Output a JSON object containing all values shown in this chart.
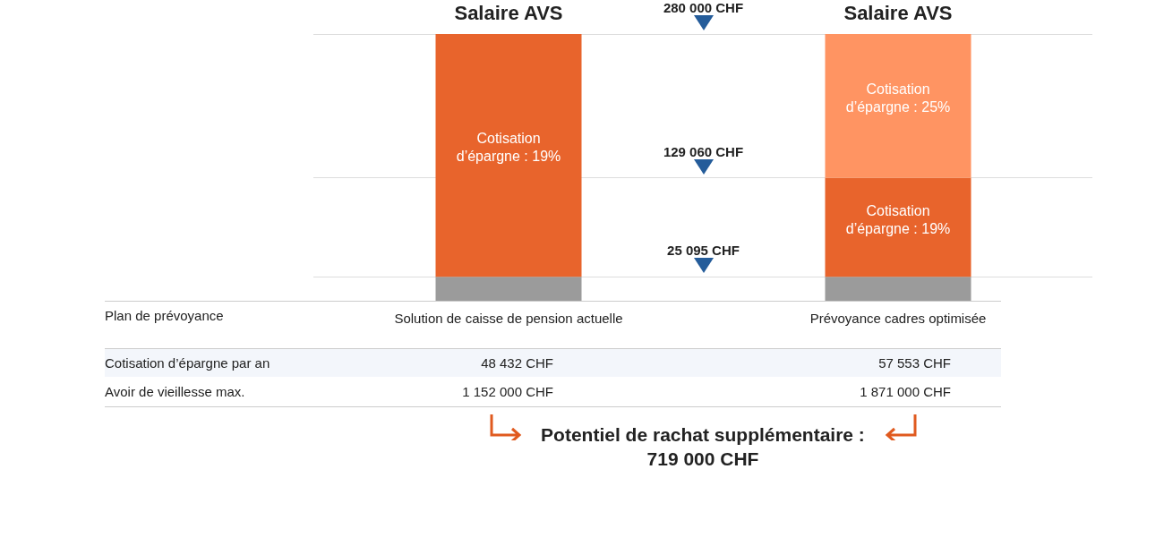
{
  "chart_data": {
    "type": "bar",
    "stacked": true,
    "tick_labels": "x",
    "categories": [
      "Solution de caisse de pension actuelle",
      "Prévoyance cadres optimisée"
    ],
    "ylim": [
      0,
      280000
    ],
    "series": [
      {
        "color": "#9b9b9b",
        "values": [
          25095,
          25095
        ]
      },
      {
        "color": "#e8642c",
        "values": [
          254905,
          103965
        ]
      },
      {
        "color": "#ff9462",
        "values": [
          null,
          150940
        ]
      }
    ],
    "ref_lines": [
      {
        "axis": "y",
        "value": 280000,
        "label": "280 000 CHF",
        "color": "#bbbbbb",
        "line_style": "dotted"
      },
      {
        "axis": "y",
        "value": 129060,
        "label": "129 060 CHF",
        "color": "#bbbbbb",
        "line_style": "dotted"
      },
      {
        "axis": "y",
        "value": 25095,
        "label": "25 095 CHF",
        "color": "#bbbbbb",
        "line_style": "dotted"
      }
    ],
    "annotations": [
      {
        "text": "Salaire AVS",
        "x": "Solution de caisse de pension actuelle",
        "y": 280000
      },
      {
        "text": "Salaire AVS",
        "x": "Prévoyance cadres optimisée",
        "y": 280000
      },
      "Cotisation d’épargne : 19%",
      "Cotisation d’épargne : 25%",
      "Cotisation d’épargne : 19%",
      "Plan de prévoyance",
      "Cotisation d’épargne par an",
      "48 432 CHF",
      "57 553 CHF",
      "Avoir de vieillesse max.",
      "1 152 000 CHF",
      "1 871 000 CHF",
      "Potentiel de rachat supplémentaire : 719 000 CHF"
    ]
  }
}
